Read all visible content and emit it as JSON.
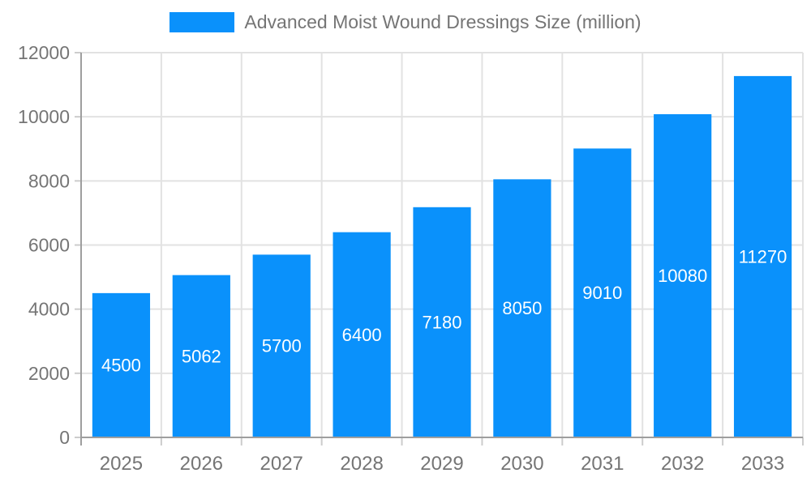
{
  "chart_data": {
    "type": "bar",
    "title": "Advanced Moist Wound Dressings Size (million)",
    "legend": {
      "label": "Advanced Moist Wound Dressings Size (million)",
      "position": "top"
    },
    "categories": [
      "2025",
      "2026",
      "2027",
      "2028",
      "2029",
      "2030",
      "2031",
      "2032",
      "2033"
    ],
    "values": [
      4500,
      5062,
      5700,
      6400,
      7180,
      8050,
      9010,
      10080,
      11270
    ],
    "value_labels": [
      "4500",
      "5062",
      "5700",
      "6400",
      "7180",
      "8050",
      "9010",
      "10080",
      "11270"
    ],
    "xlabel": "",
    "ylabel": "",
    "ylim": [
      0,
      12000
    ],
    "ytick_step": 2000,
    "ytick_labels": [
      "0",
      "2000",
      "4000",
      "6000",
      "8000",
      "10000",
      "12000"
    ],
    "grid": "both",
    "legend_position": "top-center",
    "colors": {
      "bar": "#0a91fb",
      "value_label": "#ffffff",
      "axis_text": "#757575",
      "grid_line": "#e2e2e2",
      "tick_line": "#cccccc",
      "axis_line": "#9e9e9e",
      "background": "#ffffff"
    }
  }
}
